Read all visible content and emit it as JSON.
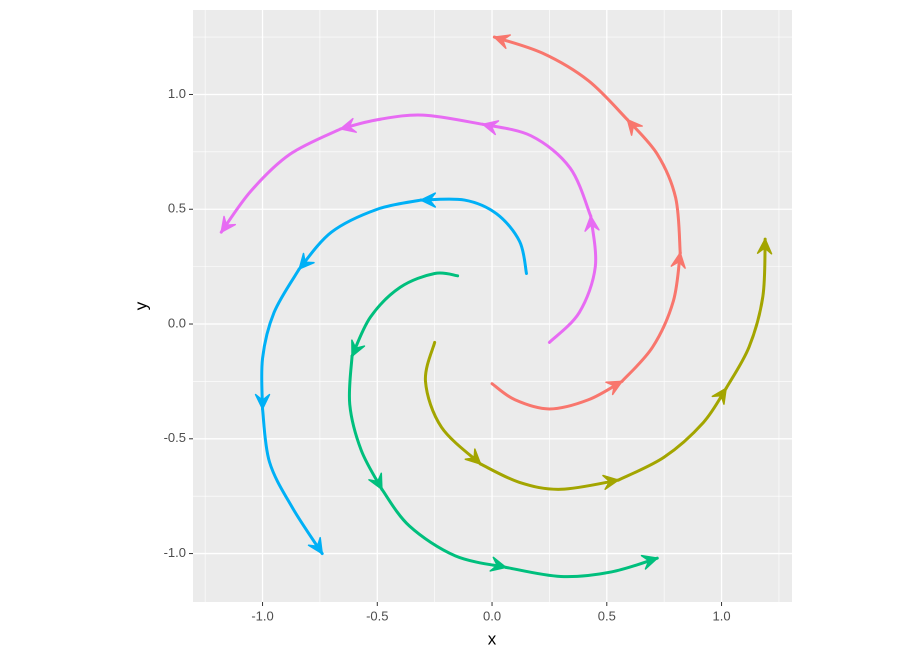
{
  "chart_data": {
    "type": "line",
    "x_label": "x",
    "y_label": "y",
    "xlim": [
      -1.303,
      1.307
    ],
    "ylim": [
      -1.211,
      1.368
    ],
    "xticks": [
      {
        "value": -1,
        "label": "-1.0"
      },
      -0.5,
      {
        "value": 0,
        "label": "0.0"
      },
      0.5,
      {
        "value": 1,
        "label": "1.0"
      }
    ],
    "yticks": [
      {
        "value": -1,
        "label": "-1.0"
      },
      -0.5,
      {
        "value": 0,
        "label": "0.0"
      },
      0.5,
      {
        "value": 1,
        "label": "1.0"
      }
    ],
    "xminor": [
      -1.25,
      -0.75,
      -0.25,
      0.25,
      0.75,
      1.25
    ],
    "yminor": [
      -0.75,
      -0.25,
      0.25,
      0.75,
      1.25
    ],
    "grid": true,
    "arrows": true,
    "series": [
      {
        "color": "#F8766D",
        "segments": [
          {
            "x": [
              0,
              0.1,
              0.25,
              0.42,
              0.566
            ],
            "y": [
              -0.26,
              -0.33,
              -0.37,
              -0.33,
              -0.25
            ]
          },
          {
            "x": [
              0.566,
              0.7,
              0.79,
              0.82
            ],
            "y": [
              -0.25,
              -0.1,
              0.1,
              0.31
            ]
          },
          {
            "x": [
              0.82,
              0.8,
              0.72,
              0.59
            ],
            "y": [
              0.31,
              0.55,
              0.74,
              0.89
            ]
          },
          {
            "x": [
              0.59,
              0.42,
              0.22,
              0.01
            ],
            "y": [
              0.89,
              1.06,
              1.18,
              1.25
            ]
          }
        ]
      },
      {
        "color": "#A3A500",
        "segments": [
          {
            "x": [
              -0.25,
              -0.29,
              -0.22,
              -0.05
            ],
            "y": [
              -0.08,
              -0.25,
              -0.45,
              -0.61
            ]
          },
          {
            "x": [
              -0.05,
              0.12,
              0.3,
              0.55
            ],
            "y": [
              -0.61,
              -0.69,
              -0.72,
              -0.68
            ]
          },
          {
            "x": [
              0.55,
              0.75,
              0.92,
              1.02
            ],
            "y": [
              -0.68,
              -0.58,
              -0.43,
              -0.28
            ]
          },
          {
            "x": [
              1.02,
              1.12,
              1.18,
              1.19
            ],
            "y": [
              -0.28,
              -0.1,
              0.12,
              0.37
            ]
          }
        ]
      },
      {
        "color": "#00BF7D",
        "segments": [
          {
            "x": [
              -0.15,
              -0.25,
              -0.4,
              -0.53,
              -0.61
            ],
            "y": [
              0.21,
              0.22,
              0.16,
              0.03,
              -0.14
            ]
          },
          {
            "x": [
              -0.61,
              -0.62,
              -0.57,
              -0.48
            ],
            "y": [
              -0.14,
              -0.35,
              -0.55,
              -0.72
            ]
          },
          {
            "x": [
              -0.48,
              -0.36,
              -0.16,
              0.06
            ],
            "y": [
              -0.72,
              -0.88,
              -1.01,
              -1.06
            ]
          },
          {
            "x": [
              0.06,
              0.3,
              0.52,
              0.72
            ],
            "y": [
              -1.06,
              -1.1,
              -1.08,
              -1.02
            ]
          }
        ]
      },
      {
        "color": "#00B0F6",
        "segments": [
          {
            "x": [
              0.15,
              0.12,
              0.02,
              -0.12,
              -0.31
            ],
            "y": [
              0.22,
              0.36,
              0.48,
              0.54,
              0.54
            ]
          },
          {
            "x": [
              -0.31,
              -0.5,
              -0.7,
              -0.84
            ],
            "y": [
              0.54,
              0.5,
              0.4,
              0.24
            ]
          },
          {
            "x": [
              -0.84,
              -0.95,
              -1.0,
              -1.0
            ],
            "y": [
              0.24,
              0.05,
              -0.15,
              -0.37
            ]
          },
          {
            "x": [
              -1.0,
              -0.97,
              -0.87,
              -0.74
            ],
            "y": [
              -0.37,
              -0.6,
              -0.8,
              -1.0
            ]
          }
        ]
      },
      {
        "color": "#E76BF3",
        "segments": [
          {
            "x": [
              0.25,
              0.38,
              0.45,
              0.43
            ],
            "y": [
              -0.08,
              0.05,
              0.25,
              0.47
            ]
          },
          {
            "x": [
              0.43,
              0.34,
              0.17,
              -0.04
            ],
            "y": [
              0.47,
              0.68,
              0.82,
              0.87
            ]
          },
          {
            "x": [
              -0.04,
              -0.3,
              -0.5,
              -0.66
            ],
            "y": [
              0.87,
              0.91,
              0.89,
              0.85
            ]
          },
          {
            "x": [
              -0.66,
              -0.88,
              -1.05,
              -1.18
            ],
            "y": [
              0.85,
              0.74,
              0.58,
              0.4
            ]
          }
        ]
      }
    ]
  }
}
